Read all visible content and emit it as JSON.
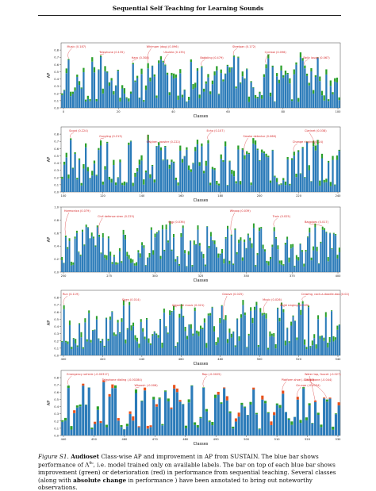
{
  "page": {
    "running_title": "Sequential Self Teaching for Learning Sounds",
    "caption": {
      "label": "Figure S1.",
      "dataset": "Audioset",
      "text_1": " Class-wise AP and improvement in AP from SUSTAIN. The blue bar shows performance of Λ",
      "superscript": "θ₀",
      "text_2": ", i.e. model trained only on available labels. The bar on top of each blue bar shows improvement (green) or deterioration (red) in performance from sequential teaching. Several classes (along with ",
      "bold_phrase": "absolute change",
      "text_3": " in performance ) have been annotated to bring out noteworthy observations."
    }
  },
  "colors": {
    "base": "#2b7bb9",
    "improve": "#2ca02c",
    "deteriorate": "#e8521c",
    "annotation": "#d62728"
  },
  "chart_data": [
    {
      "type": "bar",
      "xlabel": "Classes",
      "ylabel": "AP",
      "ylim": [
        0,
        0.9
      ],
      "yticks": [
        "0.0",
        "0.1",
        "0.2",
        "0.3",
        "0.4",
        "0.5",
        "0.6",
        "0.7",
        "0.8"
      ],
      "xticks": [
        "0",
        "20",
        "40",
        "60",
        "80",
        "100"
      ],
      "xtick_step": 20,
      "annotations": [
        {
          "label": "Music (0.187)",
          "bar": 3
        },
        {
          "label": "Telephone (0.135)",
          "bar": 18
        },
        {
          "label": "Harp (0.308)",
          "bar": 33
        },
        {
          "label": "Whimper (dog) (0.096)",
          "bar": 40
        },
        {
          "label": "Ukulele (0.135)",
          "bar": 48
        },
        {
          "label": "Babbling (0.479)",
          "bar": 65
        },
        {
          "label": "Steelpan (0.172)",
          "bar": 80
        },
        {
          "label": "Cymbal (0.096)",
          "bar": 95
        },
        {
          "label": "Belly laugh (0.067)",
          "bar": 113
        }
      ],
      "n": 130,
      "seed": 11
    },
    {
      "type": "bar",
      "xlabel": "Classes",
      "ylabel": "AP",
      "ylim": [
        0,
        0.9
      ],
      "yticks": [
        "0.0",
        "0.1",
        "0.2",
        "0.3",
        "0.4",
        "0.5",
        "0.6",
        "0.7",
        "0.8"
      ],
      "xticks": [
        "100",
        "120",
        "140",
        "160",
        "180",
        "200",
        "220",
        "240"
      ],
      "xtick_step": 20,
      "annotations": [
        {
          "label": "Scoot (0.224)",
          "bar": 4
        },
        {
          "label": "Gurgling (0.213)",
          "bar": 18
        },
        {
          "label": "Chicken, rooster (0.222)",
          "bar": 40
        },
        {
          "label": "Echo (0.107)",
          "bar": 68
        },
        {
          "label": "Smoke detector (0.066)",
          "bar": 85
        },
        {
          "label": "Change ringing (0.24)",
          "bar": 108
        },
        {
          "label": "Clarinet (0.038)",
          "bar": 118
        }
      ],
      "n": 130,
      "seed": 23
    },
    {
      "type": "bar",
      "xlabel": "Classes",
      "ylabel": "AP",
      "ylim": [
        0,
        1.0
      ],
      "yticks": [
        "0.0",
        "0.2",
        "0.4",
        "0.6",
        "0.8",
        "1.0"
      ],
      "xticks": [
        "250",
        "275",
        "300",
        "325",
        "350",
        "375",
        "400"
      ],
      "xtick_step": 25,
      "annotations": [
        {
          "label": "Harmonica (0.079)",
          "bar": 2
        },
        {
          "label": "Civil defense siren (0.225)",
          "bar": 20
        },
        {
          "label": "Cap (0.036)",
          "bar": 58
        },
        {
          "label": "Whoop (0.039)",
          "bar": 91
        },
        {
          "label": "Train (0.025)",
          "bar": 114
        },
        {
          "label": "Bagpipes (0.017)",
          "bar": 140
        }
      ],
      "n": 150,
      "seed": 37
    },
    {
      "type": "bar",
      "xlabel": "Classes",
      "ylabel": "AP",
      "ylim": [
        0,
        0.9
      ],
      "yticks": [
        "0.0",
        "0.1",
        "0.2",
        "0.3",
        "0.4",
        "0.5",
        "0.6",
        "0.7",
        "0.8"
      ],
      "xticks": [
        "400",
        "420",
        "440",
        "460",
        "480",
        "500",
        "520",
        "540"
      ],
      "xtick_step": 20,
      "annotations": [
        {
          "label": "Run (0.119)",
          "bar": 1
        },
        {
          "label": "Siren (0.014)",
          "bar": 32
        },
        {
          "label": "Classical music (0.021)",
          "bar": 58
        },
        {
          "label": "Groove (0.025)",
          "bar": 84
        },
        {
          "label": "Music (0.026)",
          "bar": 105
        },
        {
          "label": "Child singing (0.005)",
          "bar": 114
        },
        {
          "label": "Crowing, cock-a-doodle-doo (0.02)",
          "bar": 125
        }
      ],
      "n": 145,
      "seed": 53
    },
    {
      "type": "bar",
      "xlabel": "Classes",
      "ylabel": "AP",
      "ylim": [
        0,
        0.9
      ],
      "yticks": [
        "0.0",
        "0.1",
        "0.2",
        "0.3",
        "0.4",
        "0.5",
        "0.6",
        "0.7",
        "0.8"
      ],
      "xticks": [
        "440",
        "450",
        "460",
        "470",
        "480",
        "490",
        "500",
        "510",
        "520",
        "530"
      ],
      "xtick_step": 10,
      "annotations": [
        {
          "label": "Emergency vehicle (-0.00317)",
          "bar": 2
        },
        {
          "label": "Telephone dialing (-0.00284)",
          "bar": 14
        },
        {
          "label": "Whoosh (-0.006)",
          "bar": 25
        },
        {
          "label": "Rap (-0.0025)",
          "bar": 48
        },
        {
          "label": "Platform shoe (-0.0045)",
          "bar": 75
        },
        {
          "label": "Grunge (-0.0034)",
          "bar": 80
        },
        {
          "label": "Water tap, faucet (-0.027)",
          "bar": 86
        },
        {
          "label": "Saxophone (-0.044)",
          "bar": 90
        }
      ],
      "n": 95,
      "seed": 71
    }
  ]
}
